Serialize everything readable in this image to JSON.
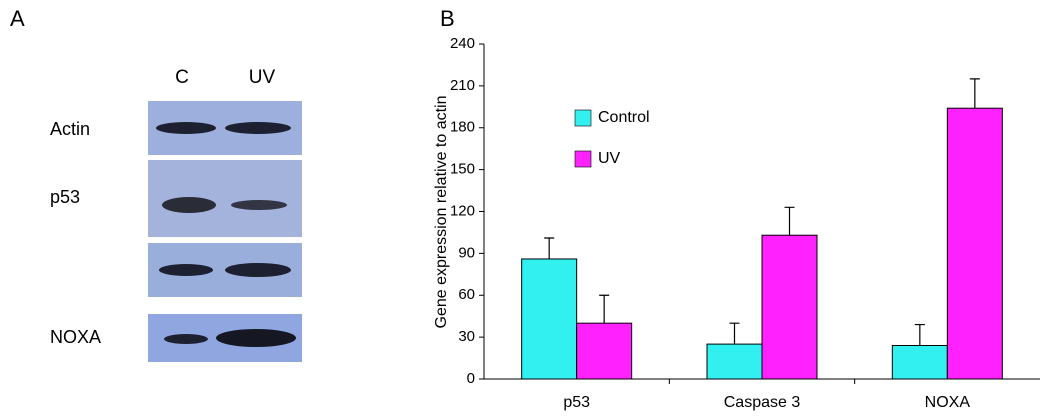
{
  "panel_a": {
    "label": "A",
    "lanes": [
      "C",
      "UV"
    ],
    "row_labels": [
      "Actin",
      "p53",
      "NOXA"
    ]
  },
  "chart_data": {
    "type": "bar",
    "label": "B",
    "y_label": "Gene expression relative to actin",
    "categories": [
      "p53",
      "Caspase 3",
      "NOXA"
    ],
    "series": [
      {
        "name": "Control",
        "color": "#33f0f0",
        "values": [
          86,
          25,
          24
        ],
        "errors": [
          15,
          15,
          15
        ]
      },
      {
        "name": "UV",
        "color": "#ff22ff",
        "values": [
          40,
          103,
          194
        ],
        "errors": [
          20,
          20,
          21
        ]
      }
    ],
    "ylim": [
      0,
      240
    ],
    "yticks": [
      0,
      30,
      60,
      90,
      120,
      150,
      180,
      210,
      240
    ],
    "legend": "upper-left",
    "grid": false
  }
}
